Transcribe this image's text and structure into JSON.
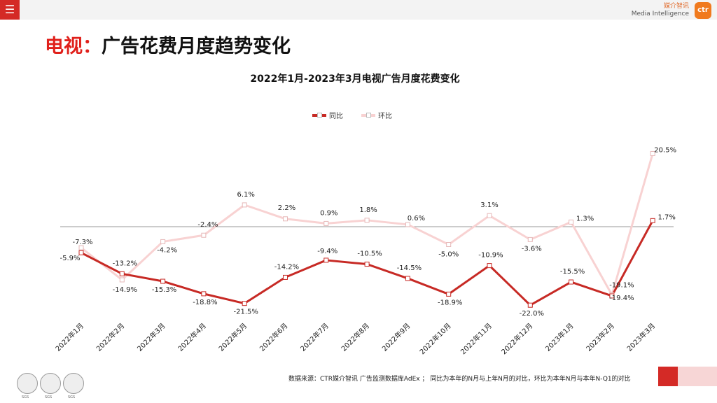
{
  "header": {
    "menu_icon": "☰",
    "brand_cn": "媒介智讯",
    "brand_en": "Media Intelligence",
    "brand_logo": "ctr"
  },
  "page_title": {
    "prefix": "电视：",
    "main": "广告花费月度趋势变化"
  },
  "footer": {
    "source": "数据来源：CTR媒介智讯 广告监测数据库AdEx ； 同比为本年的N月与上年N月的对比，环比为本年N月与本年N-Q1的对比"
  },
  "colors": {
    "yoy": "#c72a25",
    "mom": "#f8d2d2",
    "accent": "#e0201b"
  },
  "chart_data": {
    "type": "line",
    "title": "2022年1月-2023年3月电视广告月度花费变化",
    "categories": [
      "2022年1月",
      "2022年2月",
      "2022年3月",
      "2022年4月",
      "2022年5月",
      "2022年6月",
      "2022年7月",
      "2022年8月",
      "2022年9月",
      "2022年10月",
      "2022年11月",
      "2022年12月",
      "2023年1月",
      "2023年2月",
      "2023年3月"
    ],
    "series": [
      {
        "name": "同比",
        "values": [
          -7.3,
          -13.2,
          -15.3,
          -18.8,
          -21.5,
          -14.2,
          -9.4,
          -10.5,
          -14.5,
          -18.9,
          -10.9,
          -22.0,
          -15.5,
          -19.4,
          1.7
        ],
        "labels": [
          "-7.3%",
          "-13.2%",
          "-15.3%",
          "-18.8%",
          "-21.5%",
          "-14.2%",
          "-9.4%",
          "-10.5%",
          "-14.5%",
          "-18.9%",
          "-10.9%",
          "-22.0%",
          "-15.5%",
          "-19.4%",
          "1.7%"
        ]
      },
      {
        "name": "环比",
        "values": [
          -5.9,
          -14.9,
          -4.2,
          -2.4,
          6.1,
          2.2,
          0.9,
          1.8,
          0.6,
          -5.0,
          3.1,
          -3.6,
          1.3,
          -19.1,
          20.5
        ],
        "labels": [
          "-5.9%",
          "-14.9%",
          "-4.2%",
          "-2.4%",
          "6.1%",
          "2.2%",
          "0.9%",
          "1.8%",
          "0.6%",
          "-5.0%",
          "3.1%",
          "-3.6%",
          "1.3%",
          "-19.1%",
          "20.5%"
        ]
      }
    ],
    "legend_position": "top-center"
  }
}
